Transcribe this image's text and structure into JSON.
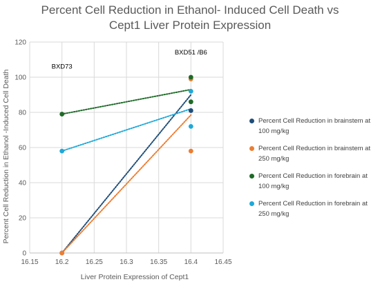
{
  "chart_data": {
    "type": "scatter",
    "title_lines": [
      "Percent Cell Reduction in Ethanol- Induced Cell Death vs",
      "Cept1 Liver Protein Expression"
    ],
    "xlabel": "Liver Protein Expression of Cept1",
    "ylabel": "Percent Cell Reduction in Ethanol -Induced Cell Death",
    "xlim": [
      16.15,
      16.45
    ],
    "ylim": [
      0,
      120
    ],
    "x_ticks": [
      "16.15",
      "16.2",
      "16.25",
      "16.3",
      "16.35",
      "16.4",
      "16.45"
    ],
    "y_ticks": [
      "0",
      "20",
      "40",
      "60",
      "80",
      "100",
      "120"
    ],
    "grid": true,
    "legend_position": "right",
    "annotations": [
      {
        "text": "BXD73",
        "x": 16.2,
        "y": 105
      },
      {
        "text": "BXD51 /B6",
        "x": 16.4,
        "y": 113
      }
    ],
    "series": [
      {
        "name": "Percent Cell Reduction in brainstem at 100 mg/kg",
        "color": "#1f4e79",
        "x": [
          16.2,
          16.4
        ],
        "y": [
          0,
          81
        ],
        "trendline": {
          "x": [
            16.2,
            16.4
          ],
          "y": [
            0,
            90
          ]
        }
      },
      {
        "name": "Percent Cell Reduction in brainstem at 250 mg/kg",
        "color": "#ed7d31",
        "x": [
          16.2,
          16.4,
          16.4
        ],
        "y": [
          0,
          58,
          99
        ],
        "trendline": {
          "x": [
            16.2,
            16.4
          ],
          "y": [
            0,
            78.5
          ]
        }
      },
      {
        "name": "Percent Cell Reduction in forebrain at 100 mg/kg",
        "color": "#1e6b28",
        "x": [
          16.2,
          16.4,
          16.4
        ],
        "y": [
          79,
          86,
          100
        ],
        "trendline": {
          "x": [
            16.2,
            16.4
          ],
          "y": [
            79,
            93
          ]
        }
      },
      {
        "name": "Percent Cell Reduction in forebrain at 250 mg/kg",
        "color": "#1ea8d8",
        "x": [
          16.2,
          16.4,
          16.4
        ],
        "y": [
          58,
          72,
          92
        ],
        "trendline": {
          "x": [
            16.2,
            16.4
          ],
          "y": [
            58,
            82
          ]
        }
      }
    ]
  }
}
